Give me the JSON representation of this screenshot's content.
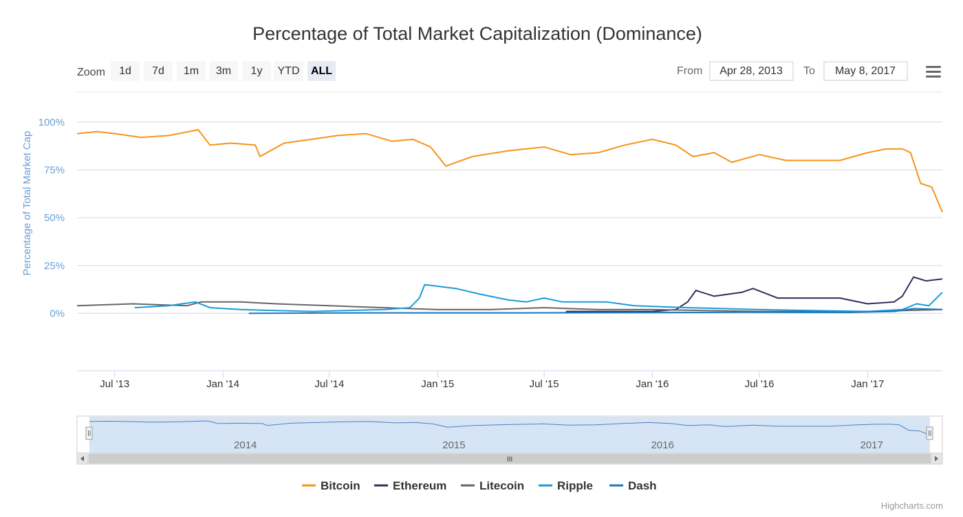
{
  "toolbar": {
    "zoom_label": "Zoom",
    "zoom_buttons": [
      "1d",
      "7d",
      "1m",
      "3m",
      "1y",
      "YTD",
      "ALL"
    ],
    "active_zoom": "ALL",
    "from_label": "From",
    "from_value": "Apr 28, 2013",
    "to_label": "To",
    "to_value": "May 8, 2017"
  },
  "credit": "Highcharts.com",
  "navigator": {
    "year_labels": [
      "2014",
      "2015",
      "2016",
      "2017"
    ],
    "scrollbar_grip": "III"
  },
  "chart_data": {
    "type": "line",
    "title": "Percentage of Total Market Capitalization (Dominance)",
    "ylabel": "Percentage of Total Market Cap",
    "ylim": [
      -30,
      110
    ],
    "yticks": [
      0,
      25,
      50,
      75,
      100
    ],
    "ytick_labels": [
      "0%",
      "25%",
      "50%",
      "75%",
      "100%"
    ],
    "xlim": [
      "2013-04-28",
      "2017-05-08"
    ],
    "xticks": [
      "2013-07-01",
      "2014-01-01",
      "2014-07-01",
      "2015-01-01",
      "2015-07-01",
      "2016-01-01",
      "2016-07-01",
      "2017-01-01"
    ],
    "xtick_labels": [
      "Jul '13",
      "Jan '14",
      "Jul '14",
      "Jan '15",
      "Jul '15",
      "Jan '16",
      "Jul '16",
      "Jan '17"
    ],
    "legend_position": "bottom",
    "grid": true,
    "series": [
      {
        "name": "Bitcoin",
        "color": "#f7931a",
        "x": [
          "2013-04-28",
          "2013-06-01",
          "2013-07-01",
          "2013-08-15",
          "2013-10-01",
          "2013-11-20",
          "2013-12-10",
          "2014-01-15",
          "2014-02-25",
          "2014-03-05",
          "2014-04-15",
          "2014-06-01",
          "2014-07-15",
          "2014-09-01",
          "2014-10-15",
          "2014-11-20",
          "2014-12-20",
          "2015-01-15",
          "2015-03-01",
          "2015-05-01",
          "2015-07-01",
          "2015-08-15",
          "2015-10-01",
          "2015-11-15",
          "2016-01-01",
          "2016-02-10",
          "2016-03-10",
          "2016-04-15",
          "2016-05-15",
          "2016-07-01",
          "2016-08-15",
          "2016-10-01",
          "2016-11-15",
          "2017-01-01",
          "2017-02-01",
          "2017-03-01",
          "2017-03-15",
          "2017-04-01",
          "2017-04-20",
          "2017-05-08"
        ],
        "values": [
          94,
          95,
          94,
          92,
          93,
          96,
          88,
          89,
          88,
          82,
          89,
          91,
          93,
          94,
          90,
          91,
          87,
          77,
          82,
          85,
          87,
          83,
          84,
          88,
          91,
          88,
          82,
          84,
          79,
          83,
          80,
          80,
          80,
          84,
          86,
          86,
          84,
          68,
          66,
          53
        ]
      },
      {
        "name": "Ethereum",
        "color": "#2e2f5e",
        "x": [
          "2015-08-07",
          "2015-10-01",
          "2016-01-01",
          "2016-02-10",
          "2016-03-01",
          "2016-03-15",
          "2016-04-15",
          "2016-06-01",
          "2016-06-20",
          "2016-08-01",
          "2016-10-01",
          "2016-11-15",
          "2017-01-01",
          "2017-02-15",
          "2017-03-01",
          "2017-03-20",
          "2017-04-10",
          "2017-05-08"
        ],
        "values": [
          1,
          1,
          1,
          2,
          6,
          12,
          9,
          11,
          13,
          8,
          8,
          8,
          5,
          6,
          9,
          19,
          17,
          18
        ]
      },
      {
        "name": "Litecoin",
        "color": "#666666",
        "x": [
          "2013-04-28",
          "2013-08-01",
          "2013-11-01",
          "2013-11-25",
          "2014-02-01",
          "2014-04-01",
          "2014-07-01",
          "2014-10-01",
          "2015-01-01",
          "2015-04-01",
          "2015-07-01",
          "2015-10-01",
          "2016-01-01",
          "2016-07-01",
          "2017-01-01",
          "2017-05-08"
        ],
        "values": [
          4,
          5,
          4,
          6,
          6,
          5,
          4,
          3,
          2,
          2,
          3,
          2,
          2,
          1,
          1,
          2
        ]
      },
      {
        "name": "Ripple",
        "color": "#1a9ad6",
        "x": [
          "2013-08-04",
          "2013-10-01",
          "2013-11-15",
          "2013-12-10",
          "2014-02-01",
          "2014-06-01",
          "2014-10-01",
          "2014-11-15",
          "2014-12-01",
          "2014-12-10",
          "2015-02-01",
          "2015-03-15",
          "2015-05-01",
          "2015-06-01",
          "2015-07-01",
          "2015-08-01",
          "2015-10-15",
          "2015-12-01",
          "2016-03-01",
          "2016-07-01",
          "2017-01-01",
          "2017-03-01",
          "2017-03-25",
          "2017-04-15",
          "2017-05-08"
        ],
        "values": [
          3,
          4,
          6,
          3,
          2,
          1,
          2,
          3,
          8,
          15,
          13,
          10,
          7,
          6,
          8,
          6,
          6,
          4,
          3,
          2,
          1,
          2,
          5,
          4,
          11
        ]
      },
      {
        "name": "Dash",
        "color": "#1c75bc",
        "x": [
          "2014-02-14",
          "2014-09-01",
          "2015-06-01",
          "2016-06-01",
          "2016-12-01",
          "2017-02-15",
          "2017-03-20",
          "2017-05-08"
        ],
        "values": [
          0,
          0.3,
          0.3,
          0.6,
          0.5,
          1,
          2.5,
          2
        ]
      }
    ]
  }
}
